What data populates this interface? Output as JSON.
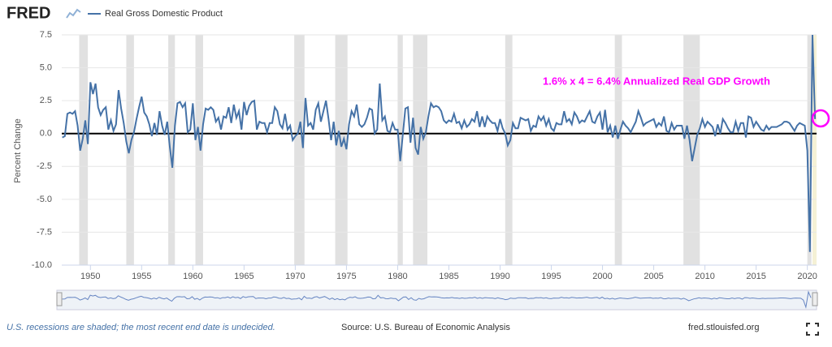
{
  "chart_data": {
    "type": "line",
    "logo": "FRED",
    "y_label": "Percent Change",
    "annotation": "1.6% x 4 = 6.4% Annualized Real GDP Growth",
    "footer_left": "U.S. recessions are shaded; the most recent end date is undecided.",
    "footer_center": "Source: U.S. Bureau of Economic Analysis",
    "footer_right": "fred.stlouisfed.org",
    "xlim": [
      1947.2,
      2020.9
    ],
    "ylim": [
      -10,
      7.5
    ],
    "xticks": [
      1950,
      1955,
      1960,
      1965,
      1970,
      1975,
      1980,
      1985,
      1990,
      1995,
      2000,
      2005,
      2010,
      2015,
      2020
    ],
    "yticks": [
      {
        "value": 7.5,
        "label": "7.5"
      },
      {
        "value": 5,
        "label": "5.0"
      },
      {
        "value": 2.5,
        "label": "2.5"
      },
      {
        "value": 0,
        "label": "0.0"
      },
      {
        "value": -2.5,
        "label": "-2.5"
      },
      {
        "value": -5,
        "label": "-5.0"
      },
      {
        "value": -7.5,
        "label": "-7.5"
      },
      {
        "value": -10,
        "label": "-10.0"
      }
    ],
    "grid": true,
    "recessions": [
      [
        1948.9,
        1949.75
      ],
      [
        1953.5,
        1954.25
      ],
      [
        1957.6,
        1958.25
      ],
      [
        1960.25,
        1961.0
      ],
      [
        1969.9,
        1970.9
      ],
      [
        1973.9,
        1975.1
      ],
      [
        1980.0,
        1980.5
      ],
      [
        1981.5,
        1982.9
      ],
      [
        1990.5,
        1991.2
      ],
      [
        2001.2,
        2001.9
      ],
      [
        2007.9,
        2009.5
      ],
      [
        2020.0,
        2020.4
      ]
    ],
    "recession_color": "#e1e1e1",
    "highlight": [
      2020.5,
      2020.9
    ],
    "highlight_color": "#f5f1d5",
    "x": [
      1947.25,
      1947.5,
      1947.75,
      1948,
      1948.25,
      1948.5,
      1948.75,
      1949,
      1949.25,
      1949.5,
      1949.75,
      1950,
      1950.25,
      1950.5,
      1950.75,
      1951,
      1951.25,
      1951.5,
      1951.75,
      1952,
      1952.25,
      1952.5,
      1952.75,
      1953,
      1953.25,
      1953.5,
      1953.75,
      1954,
      1954.25,
      1954.5,
      1954.75,
      1955,
      1955.25,
      1955.5,
      1955.75,
      1956,
      1956.25,
      1956.5,
      1956.75,
      1957,
      1957.25,
      1957.5,
      1957.75,
      1958,
      1958.25,
      1958.5,
      1958.75,
      1959,
      1959.25,
      1959.5,
      1959.75,
      1960,
      1960.25,
      1960.5,
      1960.75,
      1961,
      1961.25,
      1961.5,
      1961.75,
      1962,
      1962.25,
      1962.5,
      1962.75,
      1963,
      1963.25,
      1963.5,
      1963.75,
      1964,
      1964.25,
      1964.5,
      1964.75,
      1965,
      1965.25,
      1965.5,
      1965.75,
      1966,
      1966.25,
      1966.5,
      1966.75,
      1967,
      1967.25,
      1967.5,
      1967.75,
      1968,
      1968.25,
      1968.5,
      1968.75,
      1969,
      1969.25,
      1969.5,
      1969.75,
      1970,
      1970.25,
      1970.5,
      1970.75,
      1971,
      1971.25,
      1971.5,
      1971.75,
      1972,
      1972.25,
      1972.5,
      1972.75,
      1973,
      1973.25,
      1973.5,
      1973.75,
      1974,
      1974.25,
      1974.5,
      1974.75,
      1975,
      1975.25,
      1975.5,
      1975.75,
      1976,
      1976.25,
      1976.5,
      1976.75,
      1977,
      1977.25,
      1977.5,
      1977.75,
      1978,
      1978.25,
      1978.5,
      1978.75,
      1979,
      1979.25,
      1979.5,
      1979.75,
      1980,
      1980.25,
      1980.5,
      1980.75,
      1981,
      1981.25,
      1981.5,
      1981.75,
      1982,
      1982.25,
      1982.5,
      1982.75,
      1983,
      1983.25,
      1983.5,
      1983.75,
      1984,
      1984.25,
      1984.5,
      1984.75,
      1985,
      1985.25,
      1985.5,
      1985.75,
      1986,
      1986.25,
      1986.5,
      1986.75,
      1987,
      1987.25,
      1987.5,
      1987.75,
      1988,
      1988.25,
      1988.5,
      1988.75,
      1989,
      1989.25,
      1989.5,
      1989.75,
      1990,
      1990.25,
      1990.5,
      1990.75,
      1991,
      1991.25,
      1991.5,
      1991.75,
      1992,
      1992.25,
      1992.5,
      1992.75,
      1993,
      1993.25,
      1993.5,
      1993.75,
      1994,
      1994.25,
      1994.5,
      1994.75,
      1995,
      1995.25,
      1995.5,
      1995.75,
      1996,
      1996.25,
      1996.5,
      1996.75,
      1997,
      1997.25,
      1997.5,
      1997.75,
      1998,
      1998.25,
      1998.5,
      1998.75,
      1999,
      1999.25,
      1999.5,
      1999.75,
      2000,
      2000.25,
      2000.5,
      2000.75,
      2001,
      2001.25,
      2001.5,
      2001.75,
      2002,
      2002.25,
      2002.5,
      2002.75,
      2003,
      2003.25,
      2003.5,
      2003.75,
      2004,
      2004.25,
      2004.5,
      2004.75,
      2005,
      2005.25,
      2005.5,
      2005.75,
      2006,
      2006.25,
      2006.5,
      2006.75,
      2007,
      2007.25,
      2007.5,
      2007.75,
      2008,
      2008.25,
      2008.5,
      2008.75,
      2009,
      2009.25,
      2009.5,
      2009.75,
      2010,
      2010.25,
      2010.5,
      2010.75,
      2011,
      2011.25,
      2011.5,
      2011.75,
      2012,
      2012.25,
      2012.5,
      2012.75,
      2013,
      2013.25,
      2013.5,
      2013.75,
      2014,
      2014.25,
      2014.5,
      2014.75,
      2015,
      2015.25,
      2015.5,
      2015.75,
      2016,
      2016.25,
      2016.5,
      2016.75,
      2017,
      2017.25,
      2017.5,
      2017.75,
      2018,
      2018.25,
      2018.5,
      2018.75,
      2019,
      2019.25,
      2019.5,
      2019.75,
      2020,
      2020.25,
      2020.5,
      2020.75
    ],
    "series": [
      {
        "name": "Real Gross Domestic Product",
        "color": "#4572a7",
        "values": [
          -0.3,
          -0.2,
          1.5,
          1.6,
          1.5,
          1.7,
          0.6,
          -1.3,
          -0.4,
          1.0,
          -0.8,
          3.9,
          3.0,
          3.8,
          2.0,
          1.4,
          1.8,
          2.0,
          0.3,
          1.0,
          0.2,
          0.7,
          3.3,
          1.9,
          0.8,
          -0.6,
          -1.5,
          -0.5,
          0.1,
          1.1,
          2.0,
          2.8,
          1.6,
          1.3,
          0.7,
          -0.2,
          0.8,
          -0.1,
          1.7,
          0.6,
          -0.1,
          0.9,
          -1.0,
          -2.6,
          0.6,
          2.3,
          2.4,
          2.0,
          2.3,
          0.1,
          0.3,
          2.3,
          -0.5,
          0.5,
          -1.3,
          0.7,
          1.9,
          1.8,
          2.0,
          1.8,
          0.9,
          1.2,
          0.3,
          1.3,
          1.2,
          2.0,
          0.8,
          2.2,
          1.2,
          1.7,
          0.3,
          2.4,
          1.4,
          2.1,
          2.4,
          2.5,
          0.3,
          0.9,
          0.8,
          0.8,
          0.1,
          0.8,
          0.8,
          2.0,
          1.7,
          0.7,
          0.4,
          1.5,
          0.3,
          0.6,
          -0.5,
          -0.2,
          0.0,
          0.9,
          -1.1,
          2.7,
          0.6,
          0.8,
          0.3,
          1.8,
          2.3,
          0.9,
          1.7,
          2.5,
          1.1,
          -0.5,
          0.9,
          -0.9,
          0.2,
          -1.0,
          -0.4,
          -1.2,
          0.7,
          1.7,
          1.3,
          2.2,
          0.7,
          0.5,
          0.7,
          1.2,
          1.9,
          1.8,
          0.0,
          0.3,
          3.8,
          1.0,
          1.3,
          0.2,
          0.1,
          0.8,
          0.3,
          0.3,
          -2.1,
          -0.1,
          1.9,
          2.0,
          -0.7,
          1.2,
          -1.1,
          -1.6,
          0.5,
          -0.4,
          0.1,
          1.3,
          2.3,
          2.0,
          2.1,
          2.0,
          1.7,
          1.0,
          0.8,
          1.0,
          0.9,
          1.5,
          0.8,
          0.9,
          0.4,
          1.0,
          0.5,
          0.7,
          1.1,
          0.9,
          1.7,
          0.5,
          1.3,
          0.5,
          1.3,
          1.0,
          0.8,
          0.8,
          0.2,
          1.1,
          0.4,
          0.0,
          -0.9,
          -0.5,
          0.8,
          0.4,
          0.4,
          1.2,
          1.1,
          1.0,
          1.1,
          0.2,
          0.6,
          0.5,
          1.3,
          1.0,
          1.3,
          0.6,
          1.1,
          0.4,
          0.2,
          0.8,
          0.7,
          0.7,
          1.7,
          0.9,
          1.1,
          0.7,
          1.6,
          1.3,
          0.8,
          1.0,
          0.9,
          1.3,
          1.7,
          0.9,
          0.8,
          1.3,
          1.6,
          0.3,
          1.8,
          0.1,
          0.6,
          -0.3,
          0.6,
          -0.4,
          0.3,
          0.9,
          0.6,
          0.4,
          0.1,
          0.5,
          0.9,
          1.7,
          1.2,
          0.6,
          0.8,
          0.9,
          1.0,
          1.1,
          0.5,
          0.8,
          0.6,
          1.3,
          0.2,
          0.1,
          0.8,
          0.3,
          0.6,
          0.6,
          0.6,
          -0.4,
          0.6,
          -0.5,
          -2.1,
          -1.1,
          -0.1,
          0.4,
          1.1,
          0.5,
          0.9,
          0.7,
          0.5,
          -0.2,
          0.7,
          0.0,
          1.1,
          0.8,
          0.4,
          0.1,
          0.1,
          0.9,
          0.2,
          0.8,
          0.8,
          -0.3,
          1.3,
          1.2,
          0.5,
          0.9,
          0.6,
          0.3,
          0.2,
          0.6,
          0.3,
          0.5,
          0.5,
          0.5,
          0.6,
          0.7,
          0.9,
          0.9,
          0.8,
          0.5,
          0.2,
          0.6,
          0.8,
          0.7,
          0.6,
          -1.3,
          -9.0,
          7.5,
          1.1
        ]
      }
    ]
  }
}
